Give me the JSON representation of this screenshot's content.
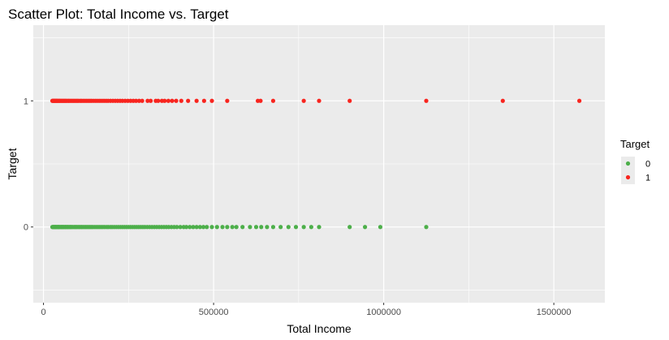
{
  "chart_data": {
    "type": "scatter",
    "title": "Scatter Plot: Total Income vs. Target",
    "xlabel": "Total Income",
    "ylabel": "Target",
    "xlim": [
      -30000,
      1650000
    ],
    "ylim": [
      -0.6,
      1.6
    ],
    "x_ticks": [
      0,
      500000,
      1000000,
      1500000
    ],
    "x_tick_labels": [
      "0",
      "500000",
      "1000000",
      "1500000"
    ],
    "y_ticks": [
      0,
      1
    ],
    "y_tick_labels": [
      "0",
      "1"
    ],
    "grid": true,
    "legend": {
      "title": "Target",
      "placement": "right",
      "entries": [
        "0",
        "1"
      ]
    },
    "colors": {
      "panel_background": "#ebebeb",
      "grid": "#ffffff",
      "series_0": "#4daf4a",
      "series_1": "#f8251f"
    },
    "series": [
      {
        "name": "0",
        "color": "#4daf4a",
        "x": [
          26000,
          28000,
          30000,
          31000,
          33000,
          35000,
          36000,
          38000,
          40000,
          42000,
          44000,
          45000,
          47000,
          50000,
          52000,
          54000,
          56000,
          58000,
          60000,
          63000,
          65000,
          67000,
          70000,
          72000,
          75000,
          78000,
          80000,
          83000,
          86000,
          90000,
          93000,
          96000,
          99000,
          103000,
          106000,
          110000,
          113000,
          117000,
          121000,
          125000,
          129000,
          133000,
          137000,
          141000,
          145000,
          150000,
          155000,
          160000,
          165000,
          170000,
          175000,
          180000,
          186000,
          191000,
          197000,
          202000,
          208000,
          214000,
          220000,
          226000,
          232000,
          238000,
          244000,
          250000,
          256000,
          262000,
          268000,
          274000,
          280000,
          286000,
          292000,
          298000,
          305000,
          312000,
          319000,
          326000,
          333000,
          340000,
          347000,
          354000,
          361000,
          368000,
          376000,
          384000,
          392000,
          402000,
          412000,
          420000,
          430000,
          440000,
          450000,
          460000,
          470000,
          480000,
          495000,
          510000,
          526000,
          540000,
          555000,
          567000,
          585000,
          607000,
          625000,
          640000,
          657000,
          675000,
          697000,
          720000,
          742000,
          765000,
          787000,
          810000,
          900000,
          945000,
          990000,
          1125000
        ],
        "y": [
          0,
          0,
          0,
          0,
          0,
          0,
          0,
          0,
          0,
          0,
          0,
          0,
          0,
          0,
          0,
          0,
          0,
          0,
          0,
          0,
          0,
          0,
          0,
          0,
          0,
          0,
          0,
          0,
          0,
          0,
          0,
          0,
          0,
          0,
          0,
          0,
          0,
          0,
          0,
          0,
          0,
          0,
          0,
          0,
          0,
          0,
          0,
          0,
          0,
          0,
          0,
          0,
          0,
          0,
          0,
          0,
          0,
          0,
          0,
          0,
          0,
          0,
          0,
          0,
          0,
          0,
          0,
          0,
          0,
          0,
          0,
          0,
          0,
          0,
          0,
          0,
          0,
          0,
          0,
          0,
          0,
          0,
          0,
          0,
          0,
          0,
          0,
          0,
          0,
          0,
          0,
          0,
          0,
          0,
          0,
          0,
          0,
          0,
          0,
          0,
          0,
          0,
          0,
          0,
          0,
          0,
          0,
          0,
          0,
          0,
          0,
          0,
          0,
          0,
          0,
          0
        ]
      },
      {
        "name": "1",
        "color": "#f8251f",
        "x": [
          26000,
          28000,
          30000,
          32000,
          34000,
          36000,
          38000,
          40000,
          42000,
          45000,
          47000,
          50000,
          53000,
          56000,
          59000,
          62000,
          65000,
          68000,
          72000,
          75000,
          79000,
          83000,
          87000,
          91000,
          95000,
          99000,
          103000,
          108000,
          112000,
          117000,
          122000,
          127000,
          132000,
          137000,
          142000,
          148000,
          154000,
          160000,
          166000,
          172000,
          178000,
          184000,
          190000,
          197000,
          204000,
          211000,
          218000,
          225000,
          232000,
          240000,
          248000,
          256000,
          264000,
          272000,
          281000,
          290000,
          306000,
          315000,
          330000,
          337000,
          348000,
          356000,
          367000,
          378000,
          390000,
          405000,
          425000,
          450000,
          472000,
          495000,
          540000,
          630000,
          638000,
          675000,
          765000,
          810000,
          900000,
          1125000,
          1350000,
          1575000
        ],
        "y": [
          1,
          1,
          1,
          1,
          1,
          1,
          1,
          1,
          1,
          1,
          1,
          1,
          1,
          1,
          1,
          1,
          1,
          1,
          1,
          1,
          1,
          1,
          1,
          1,
          1,
          1,
          1,
          1,
          1,
          1,
          1,
          1,
          1,
          1,
          1,
          1,
          1,
          1,
          1,
          1,
          1,
          1,
          1,
          1,
          1,
          1,
          1,
          1,
          1,
          1,
          1,
          1,
          1,
          1,
          1,
          1,
          1,
          1,
          1,
          1,
          1,
          1,
          1,
          1,
          1,
          1,
          1,
          1,
          1,
          1,
          1,
          1,
          1,
          1,
          1,
          1,
          1,
          1,
          1,
          1
        ]
      }
    ]
  }
}
